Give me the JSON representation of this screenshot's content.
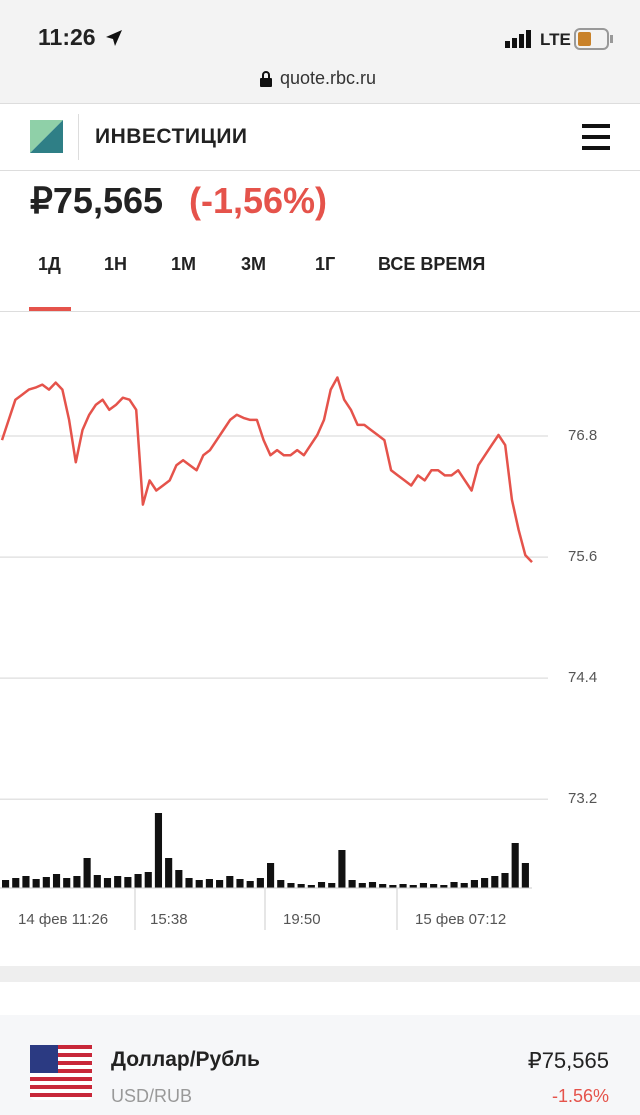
{
  "status_bar": {
    "time": "11:26",
    "network": "LTE",
    "url": "quote.rbc.ru"
  },
  "header": {
    "title": "ИНВЕСТИЦИИ"
  },
  "quote": {
    "price": "₽75,565",
    "change": "(-1,56%)"
  },
  "tabs": [
    "1Д",
    "1Н",
    "1М",
    "3М",
    "1Г",
    "ВСЕ ВРЕМЯ"
  ],
  "chart_data": {
    "type": "line",
    "series": [
      {
        "color": "#e5534b",
        "values": [
          76.76,
          76.96,
          77.16,
          77.21,
          77.26,
          77.28,
          77.31,
          77.26,
          77.33,
          77.26,
          76.96,
          76.54,
          76.86,
          77.01,
          77.11,
          77.16,
          77.06,
          77.11,
          77.18,
          77.16,
          77.06,
          76.12,
          76.36,
          76.26,
          76.31,
          76.36,
          76.51,
          76.56,
          76.51,
          76.46,
          76.61,
          76.66,
          76.76,
          76.86,
          76.96,
          77.01,
          76.98,
          76.96,
          76.96,
          76.76,
          76.61,
          76.66,
          76.61,
          76.61,
          76.66,
          76.61,
          76.71,
          76.81,
          76.96,
          77.26,
          77.38,
          77.16,
          77.06,
          76.91,
          76.91,
          76.86,
          76.81,
          76.76,
          76.46,
          76.41,
          76.36,
          76.31,
          76.41,
          76.36,
          76.46,
          76.46,
          76.41,
          76.41,
          76.46,
          76.36,
          76.26,
          76.51,
          76.61,
          76.71,
          76.81,
          76.71,
          76.17,
          75.87,
          75.62,
          75.55
        ]
      },
      {
        "type": "bar",
        "axis": "y2",
        "color": "#111111",
        "values": [
          8,
          10,
          12,
          9,
          11,
          14,
          10,
          12,
          30,
          13,
          10,
          12,
          11,
          14,
          16,
          75,
          30,
          18,
          10,
          8,
          9,
          8,
          12,
          9,
          7,
          10,
          25,
          8,
          5,
          4,
          3,
          6,
          5,
          38,
          8,
          5,
          6,
          4,
          3,
          4,
          3,
          5,
          4,
          3,
          6,
          5,
          8,
          10,
          12,
          15,
          45,
          25
        ]
      }
    ],
    "x_labels": [
      "14 фев 11:26",
      "15:38",
      "19:50",
      "15 фев 07:12"
    ],
    "ylim": [
      72.32,
      77.95
    ],
    "yticks": [
      73.2,
      74.4,
      75.6,
      76.8
    ],
    "y2lim": [
      0,
      100
    ],
    "grid": true
  },
  "instrument": {
    "name": "Доллар/Рубль",
    "ticker": "USD/RUB",
    "price": "₽75,565",
    "change": "-1.56%"
  }
}
